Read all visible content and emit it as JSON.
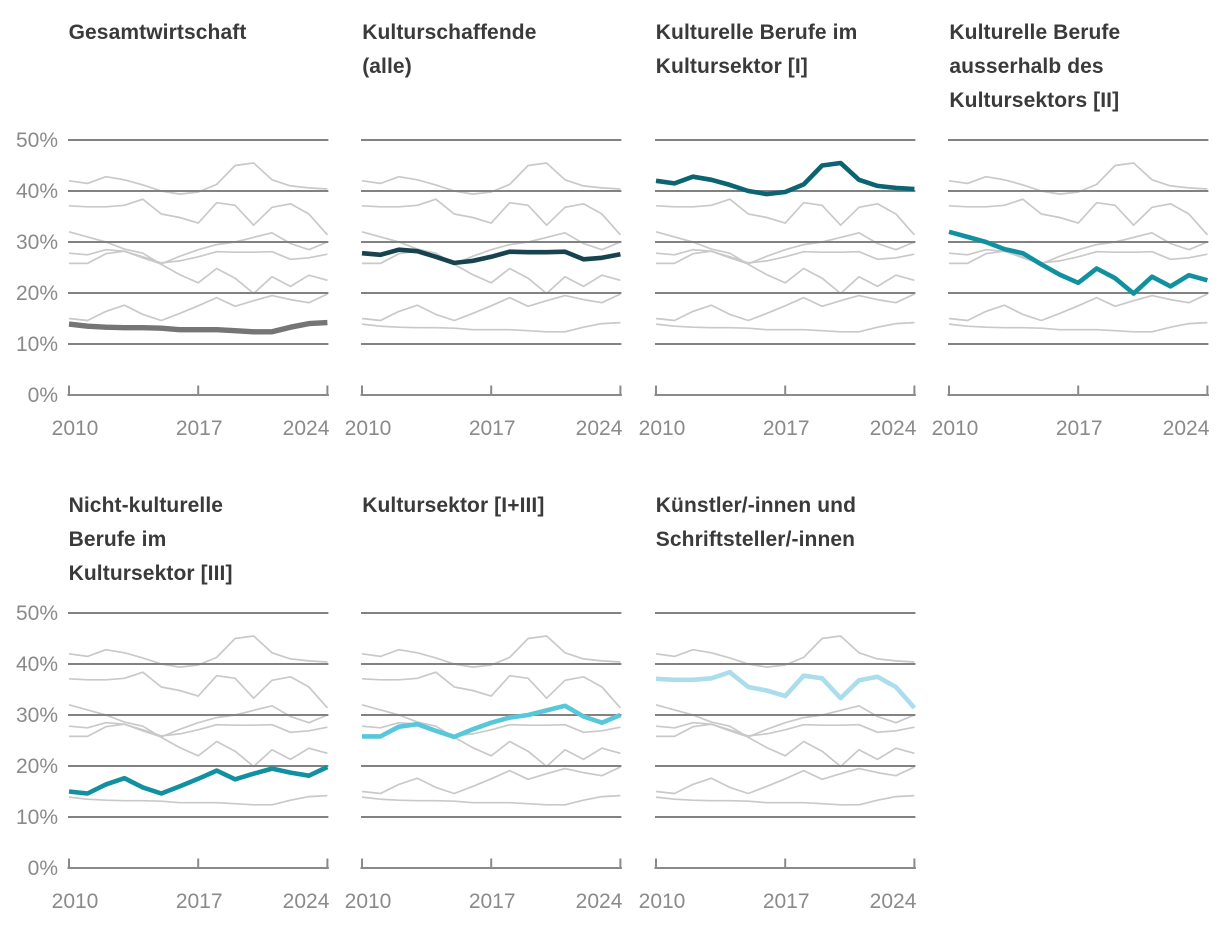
{
  "chart_data": {
    "type": "line",
    "description_layout": "small-multiples, 2 rows x 4 cols (7 panels), each panel highlights one series over gray background copies of all other series",
    "x": [
      2010,
      2011,
      2012,
      2013,
      2014,
      2015,
      2016,
      2017,
      2018,
      2019,
      2020,
      2021,
      2022,
      2023,
      2024
    ],
    "series": {
      "gesamtwirtschaft": [
        13.9,
        13.5,
        13.3,
        13.2,
        13.2,
        13.1,
        12.8,
        12.8,
        12.8,
        12.6,
        12.4,
        12.4,
        13.3,
        14.0,
        14.2
      ],
      "kulturschaffende_alle": [
        27.8,
        27.5,
        28.5,
        28.2,
        27.1,
        25.9,
        26.3,
        27.1,
        28.1,
        28.0,
        28.0,
        28.1,
        26.6,
        26.9,
        27.6
      ],
      "kulturelle_berufe_kultursektor": [
        42.0,
        41.5,
        42.8,
        42.2,
        41.2,
        40.0,
        39.4,
        39.8,
        41.3,
        45.0,
        45.5,
        42.2,
        41.0,
        40.6,
        40.4
      ],
      "kulturelle_berufe_ausserhalb": [
        32.0,
        31.0,
        30.0,
        28.6,
        27.8,
        25.6,
        23.6,
        22.0,
        24.8,
        22.9,
        19.9,
        23.2,
        21.3,
        23.5,
        22.5
      ],
      "nicht_kulturelle_berufe": [
        15.0,
        14.6,
        16.4,
        17.6,
        15.8,
        14.6,
        16.0,
        17.5,
        19.1,
        17.4,
        18.5,
        19.5,
        18.7,
        18.1,
        19.8
      ],
      "kultursektor_gesamt": [
        25.8,
        25.8,
        27.7,
        28.2,
        26.9,
        25.7,
        27.2,
        28.5,
        29.5,
        30.0,
        30.9,
        31.8,
        29.7,
        28.5,
        30.0
      ],
      "kuenstler_schriftsteller": [
        37.1,
        36.9,
        36.9,
        37.2,
        38.4,
        35.5,
        34.8,
        33.7,
        37.7,
        37.2,
        33.3,
        36.8,
        37.5,
        35.5,
        31.4
      ]
    },
    "panels": [
      {
        "key": "gesamtwirtschaft",
        "title": "Gesamtwirtschaft",
        "title_lines": [
          "Gesamtwirtschaft"
        ],
        "color": "#757575",
        "line_width": 5.4,
        "row": 0,
        "col": 0,
        "show_y_axis": true
      },
      {
        "key": "kulturschaffende_alle",
        "title": "Kulturschaffende (alle)",
        "title_lines": [
          "Kulturschaffende",
          "(alle)"
        ],
        "color": "#17434e",
        "line_width": 4.6,
        "row": 0,
        "col": 1,
        "show_y_axis": false
      },
      {
        "key": "kulturelle_berufe_kultursektor",
        "title": "Kulturelle Berufe im Kultursektor [I]",
        "title_lines": [
          "Kulturelle Berufe im",
          "Kultursektor [I]"
        ],
        "color": "#0c6472",
        "line_width": 4.6,
        "row": 0,
        "col": 2,
        "show_y_axis": false
      },
      {
        "key": "kulturelle_berufe_ausserhalb",
        "title": "Kulturelle Berufe ausserhalb des Kultursektors [II]",
        "title_lines": [
          "Kulturelle Berufe",
          "ausserhalb des",
          "Kultursektors [II]"
        ],
        "color": "#11919f",
        "line_width": 4.6,
        "row": 0,
        "col": 3,
        "show_y_axis": false
      },
      {
        "key": "nicht_kulturelle_berufe",
        "title": "Nicht-kulturelle Berufe im Kultursektor [III]",
        "title_lines": [
          "Nicht-kulturelle",
          "Berufe im",
          "Kultursektor [III]"
        ],
        "color": "#11919f",
        "line_width": 4.6,
        "row": 1,
        "col": 0,
        "show_y_axis": true
      },
      {
        "key": "kultursektor_gesamt",
        "title": "Kultursektor [I+III]",
        "title_lines": [
          "Kultursektor [I+III]"
        ],
        "color": "#58c7d9",
        "line_width": 4.6,
        "row": 1,
        "col": 1,
        "show_y_axis": false
      },
      {
        "key": "kuenstler_schriftsteller",
        "title": "Künstler/-innen und Schriftsteller/-innen",
        "title_lines": [
          "Künstler/-innen und",
          "Schriftsteller/-innen"
        ],
        "color": "#abdded",
        "line_width": 4.6,
        "row": 1,
        "col": 2,
        "show_y_axis": false
      }
    ],
    "axes": {
      "ylim": [
        0,
        50
      ],
      "ytick_labels": [
        "0%",
        "10%",
        "20%",
        "30%",
        "40%",
        "50%"
      ],
      "xtick_years": [
        2010,
        2017,
        2024
      ],
      "xtick_labels": [
        "2010",
        "2017",
        "2024"
      ],
      "grid": "horizontal"
    },
    "colors": {
      "background_series": "#c9c9c9",
      "gridline": "#828282",
      "axis": "#8a8a8a",
      "tick_label": "#8a8a8a",
      "title": "#3a3a3a"
    }
  }
}
